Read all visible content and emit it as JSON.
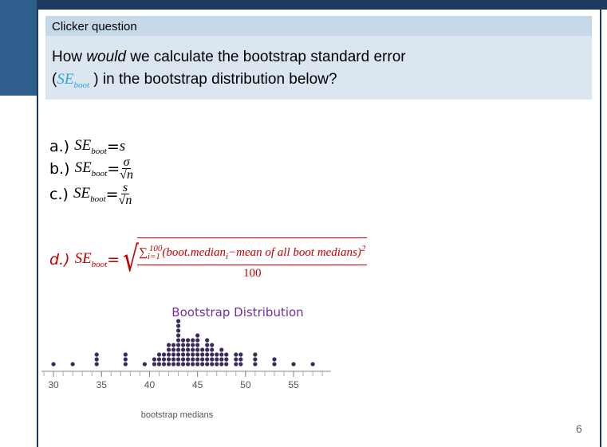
{
  "header": {
    "title": "Clicker question"
  },
  "question": {
    "part1": "How ",
    "emphasis": "would",
    "part2": " we calculate the bootstrap standard error",
    "open": "(",
    "close": " ) in the bootstrap distribution below?"
  },
  "se_symbol": {
    "base": "SE",
    "sub": "boot"
  },
  "equals": " = ",
  "options": [
    {
      "label": "a.)",
      "value": "s"
    },
    {
      "label": "b.)",
      "numerator": "σ",
      "denominator": "√n"
    },
    {
      "label": "c.)",
      "numerator": "s",
      "denominator": "√n"
    },
    {
      "label": "d.)",
      "sum": "∑",
      "sum_sub": "i=1",
      "sum_sup": "100",
      "term1": "(boot.median",
      "term1_sub": "i",
      "term2": "−mean of all boot medians)",
      "power": "2",
      "denominator": "100"
    }
  ],
  "chart_data": {
    "type": "dot",
    "title": "Bootstrap Distribution",
    "x_label": "bootstrap medians",
    "x": [
      30,
      32,
      34.5,
      37.5,
      39.5,
      40.5,
      41,
      41.5,
      42,
      42.5,
      43,
      43.5,
      44,
      44.5,
      45,
      45.5,
      46,
      46.5,
      47,
      47.5,
      48,
      49,
      49.5,
      51,
      53,
      55,
      57
    ],
    "values": [
      1,
      1,
      3,
      3,
      1,
      2,
      3,
      3,
      5,
      5,
      10,
      6,
      6,
      6,
      7,
      4,
      6,
      5,
      3,
      4,
      3,
      3,
      3,
      3,
      2,
      1,
      1
    ],
    "xlim": [
      28.75,
      58.9
    ],
    "xticks": [
      30,
      35,
      40,
      45,
      50,
      55
    ],
    "color": "#3b2a5a"
  },
  "page_number": "6"
}
